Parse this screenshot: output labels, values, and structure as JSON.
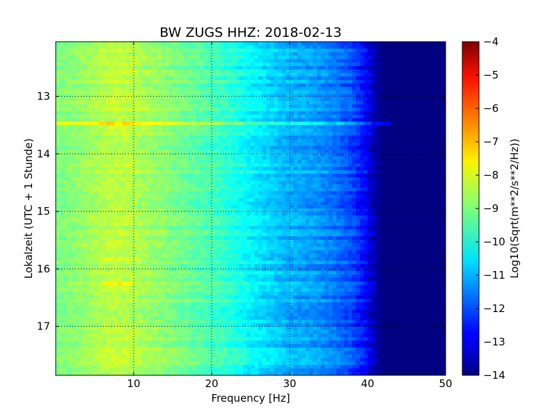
{
  "chart_data": {
    "type": "heatmap",
    "title": "BW ZUGS HHZ: 2018-02-13",
    "xlabel": "Frequency [Hz]",
    "ylabel": "Lokalzeit (UTC + 1 Stunde)",
    "xlim": [
      0,
      50
    ],
    "ylim": [
      12.05,
      17.85
    ],
    "y_inverted": true,
    "x_ticks": [
      10,
      20,
      30,
      40,
      50
    ],
    "y_ticks": [
      13,
      14,
      15,
      16,
      17
    ],
    "grid": true,
    "colormap": "jet",
    "colorbar": {
      "label": "Log10(Sqrt(m**2/s**2/Hz))",
      "range": [
        -14,
        -4
      ],
      "ticks": [
        -4,
        -5,
        -6,
        -7,
        -8,
        -9,
        -10,
        -11,
        -12,
        -13,
        -14
      ]
    },
    "spectral_profile": {
      "frequency_hz": [
        0,
        2,
        5,
        7,
        9,
        11,
        14,
        18,
        22,
        25,
        27,
        30,
        33,
        36,
        38,
        40,
        41,
        42,
        50
      ],
      "log10_amplitude": [
        -9.0,
        -8.9,
        -8.6,
        -8.4,
        -8.4,
        -8.6,
        -8.9,
        -9.3,
        -9.8,
        -10.3,
        -10.6,
        -11.0,
        -11.2,
        -11.6,
        -12.0,
        -12.8,
        -13.6,
        -14.0,
        -14.0
      ]
    },
    "features": [
      {
        "label": "narrowband line",
        "time": 13.45,
        "freq_range": [
          0,
          43
        ],
        "delta": 1.1
      },
      {
        "label": "elevated band",
        "time": 15.85,
        "freq_range": [
          5,
          11
        ],
        "delta": 0.4
      },
      {
        "label": "elevated band",
        "time": 16.25,
        "freq_range": [
          6,
          10
        ],
        "delta": 0.5
      }
    ]
  }
}
